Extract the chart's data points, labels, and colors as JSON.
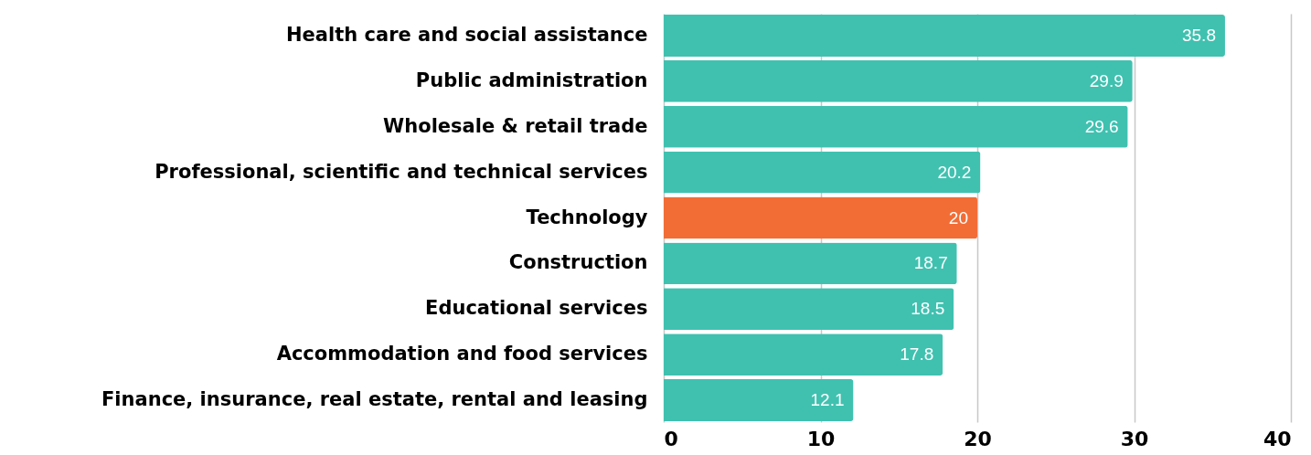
{
  "chart_data": {
    "type": "bar",
    "orientation": "horizontal",
    "categories": [
      "Health care and social assistance",
      "Public administration",
      "Wholesale & retail trade",
      "Professional, scientific and technical services",
      "Technology",
      "Construction",
      "Educational services",
      "Accommodation and food services",
      "Finance, insurance, real estate, rental and leasing"
    ],
    "values": [
      35.8,
      29.9,
      29.6,
      20.2,
      20,
      18.7,
      18.5,
      17.8,
      12.1
    ],
    "colors": [
      "#40c1b0",
      "#40c1b0",
      "#40c1b0",
      "#40c1b0",
      "#f26d36",
      "#40c1b0",
      "#40c1b0",
      "#40c1b0",
      "#40c1b0"
    ],
    "xlim": [
      0,
      40
    ],
    "xticks": [
      0,
      10,
      20,
      30,
      40
    ],
    "grid": "x",
    "data_labels": true
  }
}
